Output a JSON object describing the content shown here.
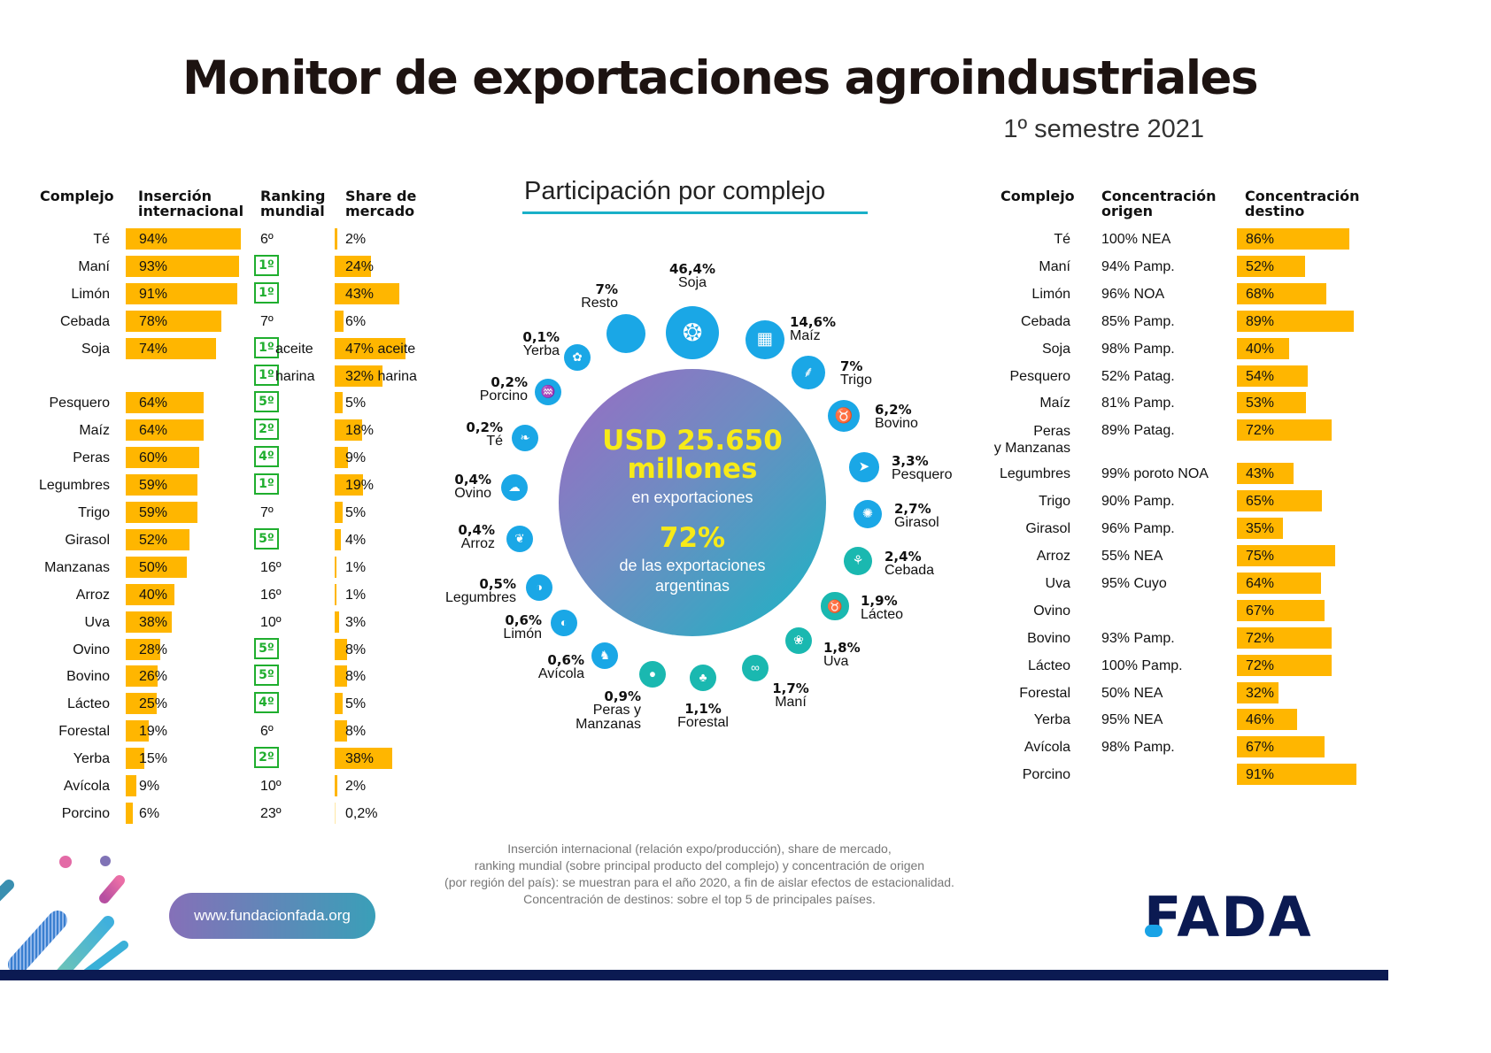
{
  "header": {
    "title": "Monitor de exportaciones agroindustriales",
    "subtitle": "1º semestre 2021"
  },
  "left_table": {
    "headers": {
      "complejo": "Complejo",
      "insercion": "Inserción internacional",
      "ranking": "Ranking mundial",
      "share": "Share de mercado"
    },
    "rows": [
      {
        "name": "Té",
        "insercion": 94,
        "insercion_label": "94%",
        "ranking": "6º",
        "ranking_highlight": false,
        "share": 2,
        "share_label": "2%"
      },
      {
        "name": "Maní",
        "insercion": 93,
        "insercion_label": "93%",
        "ranking": "1º",
        "ranking_highlight": true,
        "share": 24,
        "share_label": "24%"
      },
      {
        "name": "Limón",
        "insercion": 91,
        "insercion_label": "91%",
        "ranking": "1º",
        "ranking_highlight": true,
        "share": 43,
        "share_label": "43%"
      },
      {
        "name": "Cebada",
        "insercion": 78,
        "insercion_label": "78%",
        "ranking": "7º",
        "ranking_highlight": false,
        "share": 6,
        "share_label": "6%"
      },
      {
        "name": "Soja",
        "insercion": 74,
        "insercion_label": "74%",
        "ranking": "1º",
        "ranking_extra": "aceite",
        "ranking_highlight": true,
        "share": 47,
        "share_label": "47% aceite"
      },
      {
        "name": "",
        "insercion": null,
        "insercion_label": "",
        "ranking": "1º",
        "ranking_extra": "harina",
        "ranking_highlight": true,
        "share": 32,
        "share_label": "32% harina"
      },
      {
        "name": "Pesquero",
        "insercion": 64,
        "insercion_label": "64%",
        "ranking": "5º",
        "ranking_highlight": true,
        "share": 5,
        "share_label": "5%"
      },
      {
        "name": "Maíz",
        "insercion": 64,
        "insercion_label": "64%",
        "ranking": "2º",
        "ranking_highlight": true,
        "share": 18,
        "share_label": "18%"
      },
      {
        "name": "Peras",
        "insercion": 60,
        "insercion_label": "60%",
        "ranking": "4º",
        "ranking_highlight": true,
        "share": 9,
        "share_label": "9%"
      },
      {
        "name": "Legumbres",
        "insercion": 59,
        "insercion_label": "59%",
        "ranking": "1º",
        "ranking_highlight": true,
        "share": 19,
        "share_label": "19%"
      },
      {
        "name": "Trigo",
        "insercion": 59,
        "insercion_label": "59%",
        "ranking": "7º",
        "ranking_highlight": false,
        "share": 5,
        "share_label": "5%"
      },
      {
        "name": "Girasol",
        "insercion": 52,
        "insercion_label": "52%",
        "ranking": "5º",
        "ranking_highlight": true,
        "share": 4,
        "share_label": "4%"
      },
      {
        "name": "Manzanas",
        "insercion": 50,
        "insercion_label": "50%",
        "ranking": "16º",
        "ranking_highlight": false,
        "share": 1,
        "share_label": "1%"
      },
      {
        "name": "Arroz",
        "insercion": 40,
        "insercion_label": "40%",
        "ranking": "16º",
        "ranking_highlight": false,
        "share": 1,
        "share_label": "1%"
      },
      {
        "name": "Uva",
        "insercion": 38,
        "insercion_label": "38%",
        "ranking": "10º",
        "ranking_highlight": false,
        "share": 3,
        "share_label": "3%"
      },
      {
        "name": "Ovino",
        "insercion": 28,
        "insercion_label": "28%",
        "ranking": "5º",
        "ranking_highlight": true,
        "share": 8,
        "share_label": "8%"
      },
      {
        "name": "Bovino",
        "insercion": 26,
        "insercion_label": "26%",
        "ranking": "5º",
        "ranking_highlight": true,
        "share": 8,
        "share_label": "8%"
      },
      {
        "name": "Lácteo",
        "insercion": 25,
        "insercion_label": "25%",
        "ranking": "4º",
        "ranking_highlight": true,
        "share": 5,
        "share_label": "5%"
      },
      {
        "name": "Forestal",
        "insercion": 19,
        "insercion_label": "19%",
        "ranking": "6º",
        "ranking_highlight": false,
        "share": 8,
        "share_label": "8%"
      },
      {
        "name": "Yerba",
        "insercion": 15,
        "insercion_label": "15%",
        "ranking": "2º",
        "ranking_highlight": true,
        "share": 38,
        "share_label": "38%"
      },
      {
        "name": "Avícola",
        "insercion": 9,
        "insercion_label": "9%",
        "ranking": "10º",
        "ranking_highlight": false,
        "share": 2,
        "share_label": "2%"
      },
      {
        "name": "Porcino",
        "insercion": 6,
        "insercion_label": "6%",
        "ranking": "23º",
        "ranking_highlight": false,
        "share": 0.2,
        "share_label": "0,2%"
      }
    ]
  },
  "right_table": {
    "headers": {
      "complejo": "Complejo",
      "origen": "Concentración origen",
      "destino": "Concentración destino"
    },
    "rows": [
      {
        "name": "Té",
        "origen": "100% NEA",
        "destino": 86,
        "destino_label": "86%"
      },
      {
        "name": "Maní",
        "origen": "94% Pamp.",
        "destino": 52,
        "destino_label": "52%"
      },
      {
        "name": "Limón",
        "origen": "96% NOA",
        "destino": 68,
        "destino_label": "68%"
      },
      {
        "name": "Cebada",
        "origen": "85% Pamp.",
        "destino": 89,
        "destino_label": "89%"
      },
      {
        "name": "Soja",
        "origen": "98% Pamp.",
        "destino": 40,
        "destino_label": "40%"
      },
      {
        "name": "Pesquero",
        "origen": "52% Patag.",
        "destino": 54,
        "destino_label": "54%"
      },
      {
        "name": "Maíz",
        "origen": "81% Pamp.",
        "destino": 53,
        "destino_label": "53%"
      },
      {
        "name": "Peras y Manzanas",
        "name_line1": "Peras",
        "name_line2": "y Manzanas",
        "origen": "89% Patag.",
        "destino": 72,
        "destino_label": "72%"
      },
      {
        "name": "Legumbres",
        "origen": "99% poroto NOA",
        "destino": 43,
        "destino_label": "43%"
      },
      {
        "name": "Trigo",
        "origen": "90% Pamp.",
        "destino": 65,
        "destino_label": "65%"
      },
      {
        "name": "Girasol",
        "origen": "96% Pamp.",
        "destino": 35,
        "destino_label": "35%"
      },
      {
        "name": "Arroz",
        "origen": "55% NEA",
        "destino": 75,
        "destino_label": "75%"
      },
      {
        "name": "Uva",
        "origen": "95% Cuyo",
        "destino": 64,
        "destino_label": "64%"
      },
      {
        "name": "Ovino",
        "origen": "",
        "destino": 67,
        "destino_label": "67%"
      },
      {
        "name": "Bovino",
        "origen": "93% Pamp.",
        "destino": 72,
        "destino_label": "72%"
      },
      {
        "name": "Lácteo",
        "origen": "100% Pamp.",
        "destino": 72,
        "destino_label": "72%"
      },
      {
        "name": "Forestal",
        "origen": "50% NEA",
        "destino": 32,
        "destino_label": "32%"
      },
      {
        "name": "Yerba",
        "origen": "95% NEA",
        "destino": 46,
        "destino_label": "46%"
      },
      {
        "name": "Avícola",
        "origen": "98% Pamp.",
        "destino": 67,
        "destino_label": "67%"
      },
      {
        "name": "Porcino",
        "origen": "",
        "destino": 91,
        "destino_label": "91%"
      }
    ]
  },
  "center": {
    "title": "Participación por complejo",
    "total_value": "USD 25.650",
    "total_unit": "millones",
    "total_caption": "en exportaciones",
    "share_value": "72%",
    "share_caption": "de las exportaciones argentinas"
  },
  "chart_data": {
    "type": "bubble-radial",
    "title": "Participación por complejo",
    "unit": "% of agroindustrial exports",
    "items": [
      {
        "name": "Soja",
        "value": 46.4,
        "label": "46,4%",
        "icon": "soybean-icon",
        "color": "#1aa7e6"
      },
      {
        "name": "Maíz",
        "value": 14.6,
        "label": "14,6%",
        "icon": "corn-icon",
        "color": "#1aa7e6"
      },
      {
        "name": "Trigo",
        "value": 7,
        "label": "7%",
        "icon": "wheat-icon",
        "color": "#1aa7e6"
      },
      {
        "name": "Bovino",
        "value": 6.2,
        "label": "6,2%",
        "icon": "cow-icon",
        "color": "#1aa7e6"
      },
      {
        "name": "Pesquero",
        "value": 3.3,
        "label": "3,3%",
        "icon": "fish-icon",
        "color": "#1aa7e6"
      },
      {
        "name": "Girasol",
        "value": 2.7,
        "label": "2,7%",
        "icon": "sunflower-icon",
        "color": "#1aa7e6"
      },
      {
        "name": "Cebada",
        "value": 2.4,
        "label": "2,4%",
        "icon": "barley-icon",
        "color": "#1ab8b0"
      },
      {
        "name": "Lácteo",
        "value": 1.9,
        "label": "1,9%",
        "icon": "dairy-cow-icon",
        "color": "#1ab8b0"
      },
      {
        "name": "Uva",
        "value": 1.8,
        "label": "1,8%",
        "icon": "grape-icon",
        "color": "#1ab8b0"
      },
      {
        "name": "Maní",
        "value": 1.7,
        "label": "1,7%",
        "icon": "peanut-icon",
        "color": "#1ab8b0"
      },
      {
        "name": "Forestal",
        "value": 1.1,
        "label": "1,1%",
        "icon": "trees-icon",
        "color": "#1ab8b0"
      },
      {
        "name": "Peras y Manzanas",
        "value": 0.9,
        "label": "0,9%",
        "icon": "apple-icon",
        "color": "#1ab8b0"
      },
      {
        "name": "Avícola",
        "value": 0.6,
        "label": "0,6%",
        "icon": "chicken-icon",
        "color": "#1aa7e6"
      },
      {
        "name": "Limón",
        "value": 0.6,
        "label": "0,6%",
        "icon": "lemon-icon",
        "color": "#1aa7e6"
      },
      {
        "name": "Legumbres",
        "value": 0.5,
        "label": "0,5%",
        "icon": "beans-icon",
        "color": "#1aa7e6"
      },
      {
        "name": "Arroz",
        "value": 0.4,
        "label": "0,4%",
        "icon": "rice-icon",
        "color": "#1aa7e6"
      },
      {
        "name": "Ovino",
        "value": 0.4,
        "label": "0,4%",
        "icon": "sheep-icon",
        "color": "#1aa7e6"
      },
      {
        "name": "Té",
        "value": 0.2,
        "label": "0,2%",
        "icon": "tea-icon",
        "color": "#1aa7e6"
      },
      {
        "name": "Porcino",
        "value": 0.2,
        "label": "0,2%",
        "icon": "pig-icon",
        "color": "#1aa7e6"
      },
      {
        "name": "Yerba",
        "value": 0.1,
        "label": "0,1%",
        "icon": "yerba-icon",
        "color": "#1aa7e6"
      },
      {
        "name": "Resto",
        "value": 7,
        "label": "7%",
        "icon": "",
        "color": "#1aa7e6"
      }
    ]
  },
  "footer": {
    "note_lines": [
      "Inserción internacional (relación expo/producción), share de mercado,",
      "ranking mundial (sobre principal producto del complejo) y concentración de origen",
      "(por región del país): se muestran para el año 2020, a fin de aislar efectos de estacionalidad.",
      "Concentración de destinos: sobre el top 5 de principales países."
    ],
    "website": "www.fundacionfada.org",
    "logo": "FADA"
  },
  "colors": {
    "bar": "#FFB600",
    "rank_highlight": "#1fae2e",
    "bubble_blue": "#1aa7e6",
    "bubble_teal": "#1ab8b0",
    "accent_yellow": "#f7ea18",
    "navy": "#0b1a52"
  }
}
